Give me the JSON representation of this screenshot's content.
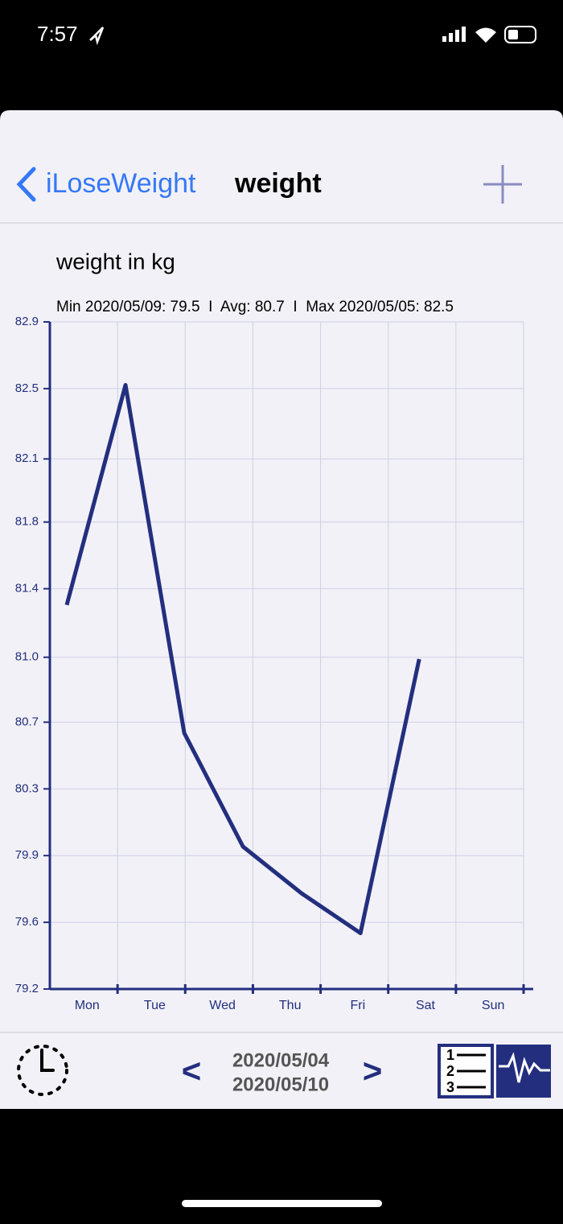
{
  "status_bar": {
    "time": "7:57"
  },
  "nav": {
    "back": "iLoseWeight",
    "title": "weight"
  },
  "chart_data": {
    "type": "line",
    "title": "weight in kg",
    "subtitle": "Min 2020/05/09: 79.5  I  Avg: 80.7  I  Max 2020/05/05: 82.5",
    "categories": [
      "Mon",
      "Tue",
      "Wed",
      "Thu",
      "Fri",
      "Sat",
      "Sun"
    ],
    "series": [
      {
        "name": "weight",
        "color": "#232f7e",
        "values": [
          81.33,
          82.55,
          80.62,
          79.99,
          79.73,
          79.51,
          81.03
        ]
      }
    ],
    "ylim": [
      79.2,
      82.9
    ],
    "yticks": [
      79.2,
      {
        "value": 79.57,
        "label": "79.6"
      },
      {
        "value": 79.94,
        "label": "79.9"
      },
      {
        "value": 80.31,
        "label": "80.3"
      },
      {
        "value": 80.68,
        "label": "80.7"
      },
      {
        "value": 81.04,
        "label": "81.0"
      },
      {
        "value": 81.42,
        "label": "81.4"
      },
      {
        "value": 81.79,
        "label": "81.8"
      },
      {
        "value": 82.14,
        "label": "82.1"
      },
      {
        "value": 82.53,
        "label": "82.5"
      },
      82.9
    ],
    "grid": true
  },
  "toolbar": {
    "prev": "<",
    "next": ">",
    "range_start": "2020/05/04",
    "range_end": "2020/05/10",
    "list_icon": [
      "1",
      "2",
      "3"
    ]
  }
}
